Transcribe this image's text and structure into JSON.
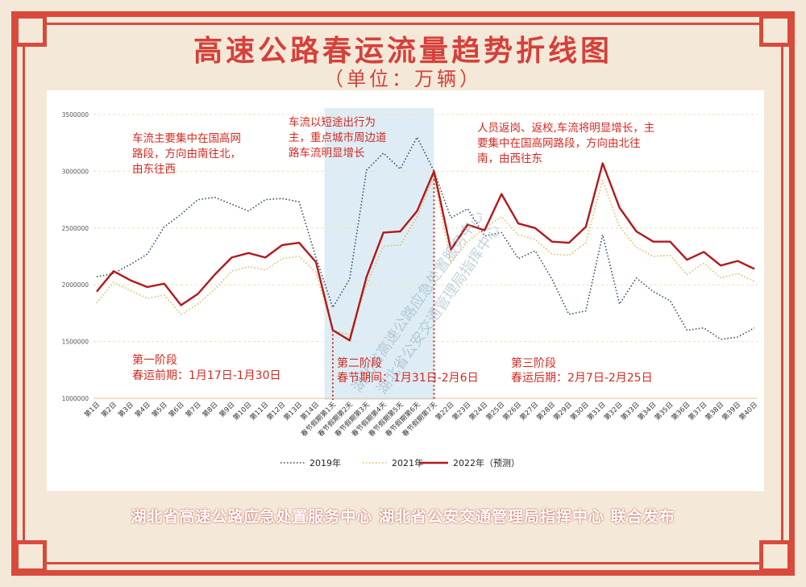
{
  "title": "高速公路春运流量趋势折线图",
  "unit": "（单位：万辆）",
  "footer": "湖北省高速公路应急处置服务中心 湖北省公安交通管理局指挥中心 联合发布",
  "watermark_lines": [
    "湖北省高速公路应急处置服务中心",
    "湖北省公安交通管理局指挥中心"
  ],
  "annotations": {
    "phase1_note": "车流主要集中在国高网路段，方向由南往北，由东往西",
    "phase2_note": "车流以短途出行为主，重点城市周边道路车流明显增长",
    "phase3_note": "人员返岗、返校,车流将明显增长，主要集中在国高网路段，方向由北往南，由西往东",
    "phase1_title": "第一阶段",
    "phase1_range": "春运前期：1月17日-1月30日",
    "phase2_title": "第二阶段",
    "phase2_range": "春节期间：1月31日-2月6日",
    "phase3_title": "第三阶段",
    "phase3_range": "春运后期：2月7日-2月25日"
  },
  "colors": {
    "accent": "#d94a3c",
    "series_2019": "#2b4a6e",
    "series_2021": "#e0b95a",
    "series_2022": "#b3181c",
    "highlight": "#d8eaf3"
  },
  "chart_data": {
    "type": "line",
    "title": "高速公路春运流量趋势折线图",
    "ylim": [
      1000000,
      3500000
    ],
    "yticks": [
      1000000,
      1500000,
      2000000,
      2500000,
      3000000,
      3500000
    ],
    "grid": true,
    "legend": "bottom",
    "categories": [
      "第1日",
      "第2日",
      "第3日",
      "第4日",
      "第5日",
      "第6日",
      "第7日",
      "第8日",
      "第9日",
      "第10日",
      "第11日",
      "第12日",
      "第13日",
      "第14日",
      "春节假期第1天",
      "春节假期第2天",
      "春节假期第3天",
      "春节假期第4天",
      "春节假期第5天",
      "春节假期第6天",
      "春节假期第7天",
      "第22日",
      "第23日",
      "第24日",
      "第25日",
      "第26日",
      "第27日",
      "第28日",
      "第29日",
      "第30日",
      "第31日",
      "第32日",
      "第33日",
      "第34日",
      "第35日",
      "第36日",
      "第37日",
      "第38日",
      "第39日",
      "第40日"
    ],
    "highlight_range": [
      "春节假期第1天",
      "春节假期第7天"
    ],
    "series": [
      {
        "name": "2019年",
        "style": "dotted",
        "values": [
          2070000,
          2100000,
          2180000,
          2270000,
          2510000,
          2620000,
          2750000,
          2770000,
          2710000,
          2650000,
          2750000,
          2760000,
          2730000,
          2240000,
          1800000,
          2050000,
          3010000,
          3160000,
          3020000,
          3300000,
          3000000,
          2590000,
          2670000,
          2430000,
          2460000,
          2230000,
          2300000,
          2050000,
          1740000,
          1770000,
          2440000,
          1830000,
          2060000,
          1940000,
          1860000,
          1600000,
          1620000,
          1520000,
          1540000,
          1620000
        ]
      },
      {
        "name": "2021年",
        "style": "dotted",
        "values": [
          1840000,
          2020000,
          1950000,
          1880000,
          1910000,
          1740000,
          1830000,
          1960000,
          2120000,
          2160000,
          2130000,
          2230000,
          2250000,
          2110000,
          1600000,
          1560000,
          2000000,
          2340000,
          2350000,
          2600000,
          2950000,
          2190000,
          2380000,
          2500000,
          2600000,
          2440000,
          2400000,
          2270000,
          2260000,
          2370000,
          2920000,
          2510000,
          2330000,
          2250000,
          2260000,
          2090000,
          2190000,
          2060000,
          2100000,
          2030000
        ]
      },
      {
        "name": "2022年（预测）",
        "style": "solid",
        "values": [
          1940000,
          2120000,
          2040000,
          1980000,
          2010000,
          1820000,
          1920000,
          2090000,
          2240000,
          2280000,
          2240000,
          2350000,
          2370000,
          2200000,
          1600000,
          1510000,
          2070000,
          2460000,
          2470000,
          2650000,
          3000000,
          2310000,
          2530000,
          2480000,
          2800000,
          2540000,
          2500000,
          2380000,
          2370000,
          2510000,
          3070000,
          2680000,
          2470000,
          2380000,
          2380000,
          2220000,
          2290000,
          2170000,
          2210000,
          2140000
        ]
      }
    ]
  }
}
